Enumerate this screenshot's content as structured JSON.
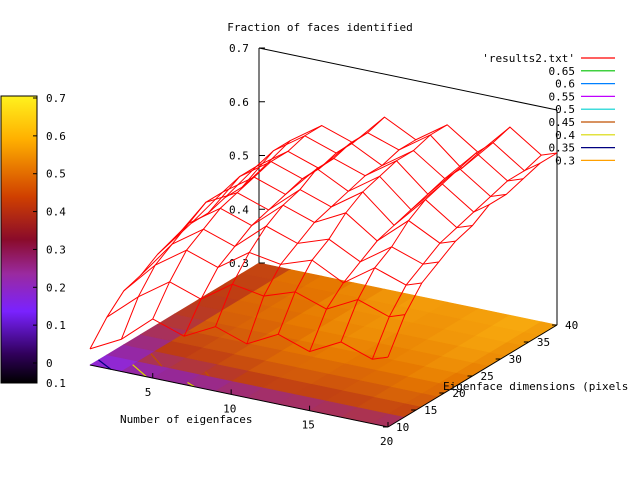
{
  "chart_data": {
    "type": "surface3d",
    "title": "Fraction of faces identified",
    "xlabel": "Number of eigenfaces",
    "ylabel": "Eigenface dimensions (pixels",
    "x_ticks": [
      "5",
      "10",
      "15",
      "20"
    ],
    "y_ticks": [
      "10",
      "15",
      "20",
      "25",
      "30",
      "35",
      "40"
    ],
    "z_ticks": [
      "0.3",
      "0.4",
      "0.5",
      "0.6",
      "0.7"
    ],
    "zlim": [
      0.3,
      0.7
    ],
    "xlim": [
      1,
      20
    ],
    "ylim": [
      10,
      40
    ],
    "colorbar": {
      "ticks": [
        "0.7",
        "0.6",
        "0.5",
        "0.4",
        "0.3",
        "0.2",
        "0.1",
        "0"
      ],
      "bottom_label": "0.1",
      "stops": [
        "#fff21e",
        "#ff8800",
        "#c33b00",
        "#8a0b2a",
        "#8a1fb5",
        "#7a22ff",
        "#3b0080",
        "#000000"
      ]
    },
    "legend": {
      "position": "top-right",
      "entries": [
        {
          "label": "'results2.txt'",
          "color": "#ff0000"
        },
        {
          "label": "0.65",
          "color": "#00c000"
        },
        {
          "label": "0.6",
          "color": "#0080ff"
        },
        {
          "label": "0.55",
          "color": "#c000ff"
        },
        {
          "label": "0.5",
          "color": "#00d0d0"
        },
        {
          "label": "0.45",
          "color": "#c05000"
        },
        {
          "label": "0.4",
          "color": "#d8d800"
        },
        {
          "label": "0.35",
          "color": "#000080"
        },
        {
          "label": "0.3",
          "color": "#ffa000"
        }
      ]
    },
    "x_values": [
      1,
      3,
      5,
      7,
      9,
      11,
      13,
      15,
      17,
      19,
      20
    ],
    "y_values": [
      10,
      13,
      16,
      19,
      22,
      25,
      28,
      31,
      34,
      37,
      40
    ],
    "z_grid": [
      [
        0.33,
        0.36,
        0.41,
        0.39,
        0.42,
        0.4,
        0.43,
        0.41,
        0.44,
        0.42,
        0.43
      ],
      [
        0.37,
        0.42,
        0.46,
        0.44,
        0.48,
        0.47,
        0.49,
        0.47,
        0.5,
        0.48,
        0.49
      ],
      [
        0.4,
        0.46,
        0.5,
        0.48,
        0.52,
        0.51,
        0.53,
        0.5,
        0.54,
        0.52,
        0.53
      ],
      [
        0.41,
        0.48,
        0.52,
        0.5,
        0.55,
        0.53,
        0.55,
        0.52,
        0.56,
        0.54,
        0.55
      ],
      [
        0.43,
        0.5,
        0.54,
        0.52,
        0.57,
        0.55,
        0.58,
        0.54,
        0.59,
        0.56,
        0.57
      ],
      [
        0.44,
        0.52,
        0.55,
        0.53,
        0.58,
        0.56,
        0.6,
        0.55,
        0.61,
        0.57,
        0.58
      ],
      [
        0.45,
        0.52,
        0.56,
        0.54,
        0.6,
        0.57,
        0.61,
        0.56,
        0.62,
        0.58,
        0.6
      ],
      [
        0.45,
        0.53,
        0.57,
        0.55,
        0.6,
        0.58,
        0.62,
        0.57,
        0.63,
        0.59,
        0.6
      ],
      [
        0.46,
        0.53,
        0.57,
        0.55,
        0.61,
        0.58,
        0.62,
        0.58,
        0.64,
        0.6,
        0.61
      ],
      [
        0.46,
        0.54,
        0.58,
        0.56,
        0.61,
        0.59,
        0.63,
        0.58,
        0.64,
        0.6,
        0.62
      ],
      [
        0.47,
        0.54,
        0.58,
        0.56,
        0.62,
        0.59,
        0.63,
        0.59,
        0.65,
        0.61,
        0.62
      ]
    ]
  }
}
